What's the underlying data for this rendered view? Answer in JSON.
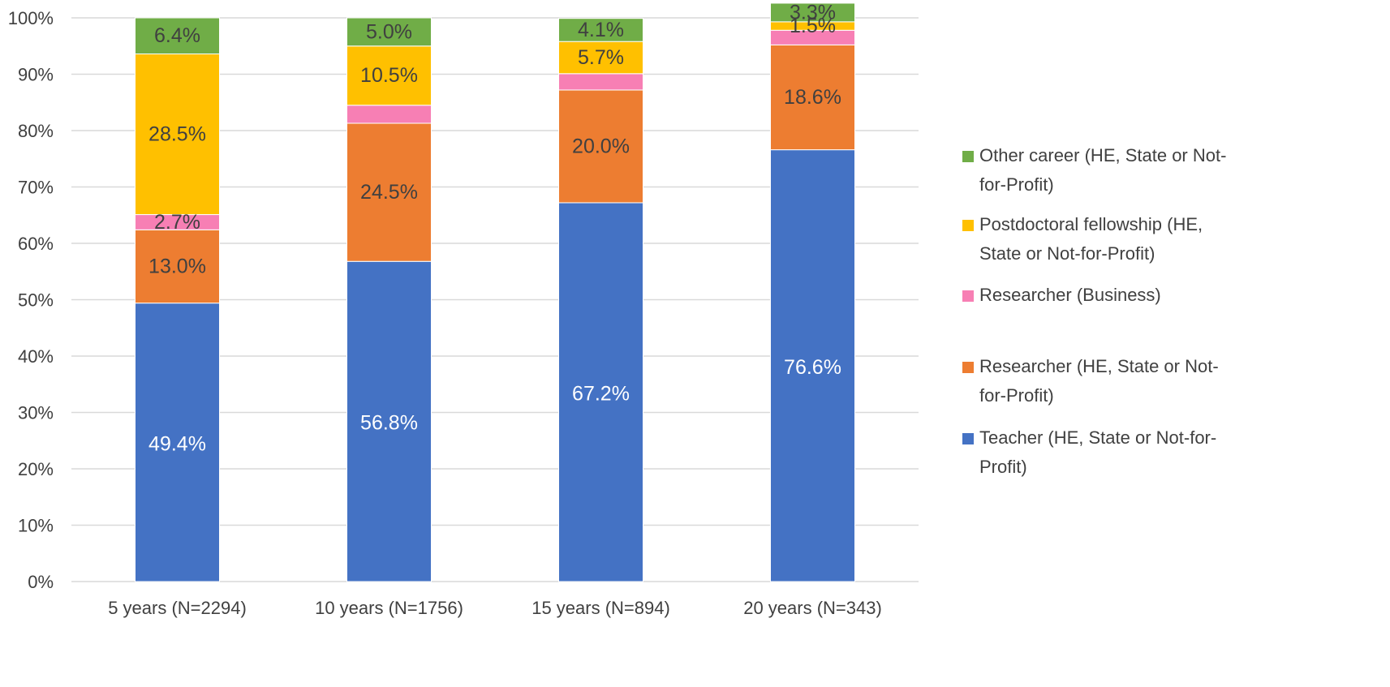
{
  "chart_data": {
    "type": "bar",
    "stacked": true,
    "percent": true,
    "title": "",
    "xlabel": "",
    "ylabel": "",
    "ylim": [
      0,
      100
    ],
    "yticks": [
      "0%",
      "10%",
      "20%",
      "30%",
      "40%",
      "50%",
      "60%",
      "70%",
      "80%",
      "90%",
      "100%"
    ],
    "grid": true,
    "legend_position": "right",
    "categories": [
      "5 years (N=2294)",
      "10 years (N=1756)",
      "15 years (N=894)",
      "20 years (N=343)"
    ],
    "series": [
      {
        "name": "Teacher (HE, State or Not-for-Profit)",
        "legend_lines": [
          "Teacher (HE, State or Not-for-",
          "Profit)"
        ],
        "color": "#4472C4",
        "label_color": "#FFFFFF",
        "values": [
          49.4,
          56.8,
          67.2,
          76.6
        ],
        "labels": [
          "49.4%",
          "56.8%",
          "67.2%",
          "76.6%"
        ]
      },
      {
        "name": "Researcher (HE, State or Not-for-Profit)",
        "legend_lines": [
          "Researcher (HE, State or Not-",
          "for-Profit)"
        ],
        "color": "#ED7D31",
        "label_color": "#404040",
        "values": [
          13.0,
          24.5,
          20.0,
          18.6
        ],
        "labels": [
          "13.0%",
          "24.5%",
          "20.0%",
          "18.6%"
        ]
      },
      {
        "name": "Researcher (Business)",
        "legend_lines": [
          "Researcher (Business)"
        ],
        "color": "#F77FB4",
        "label_color": "#404040",
        "values": [
          2.7,
          3.2,
          2.9,
          2.6
        ],
        "labels": [
          "2.7%",
          "",
          "",
          ""
        ]
      },
      {
        "name": "Postdoctoral fellowship (HE, State or Not-for-Profit)",
        "legend_lines": [
          "Postdoctoral fellowship (HE,",
          "State or Not-for-Profit)"
        ],
        "color": "#FFC000",
        "label_color": "#404040",
        "values": [
          28.5,
          10.5,
          5.7,
          1.5
        ],
        "labels": [
          "28.5%",
          "10.5%",
          "5.7%",
          "1.5%"
        ]
      },
      {
        "name": "Other career (HE, State or Not-for-Profit)",
        "legend_lines": [
          "Other career (HE, State or Not-",
          "for-Profit)"
        ],
        "color": "#70AD47",
        "label_color": "#404040",
        "values": [
          6.4,
          5.0,
          4.1,
          3.3
        ],
        "labels": [
          "6.4%",
          "5.0%",
          "4.1%",
          "3.3%"
        ]
      }
    ],
    "legend_order": [
      4,
      3,
      2,
      1,
      0
    ]
  }
}
